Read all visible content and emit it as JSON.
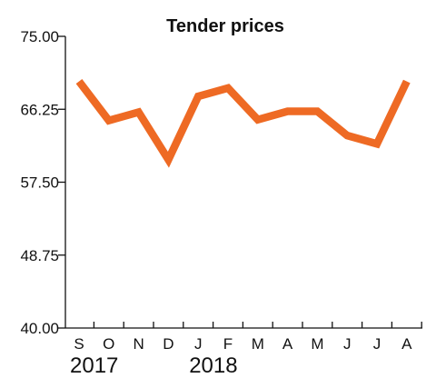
{
  "chart_data": {
    "type": "line",
    "title": "Tender prices",
    "xlabel": "",
    "ylabel": "",
    "ylim": [
      40.0,
      75.0
    ],
    "yticks": [
      "40.00",
      "48.75",
      "57.50",
      "66.25",
      "75.00"
    ],
    "categories": [
      "S",
      "O",
      "N",
      "D",
      "J",
      "F",
      "M",
      "A",
      "M",
      "J",
      "J",
      "A"
    ],
    "year_labels": [
      {
        "text": "2017",
        "category_index": 0
      },
      {
        "text": "2018",
        "category_index": 4
      }
    ],
    "series": [
      {
        "color": "#ee6a24",
        "values": [
          69.6,
          64.9,
          65.9,
          60.2,
          67.8,
          68.8,
          65.0,
          66.0,
          66.0,
          63.1,
          62.1,
          69.6
        ]
      }
    ],
    "grid": false,
    "legend": "none"
  }
}
